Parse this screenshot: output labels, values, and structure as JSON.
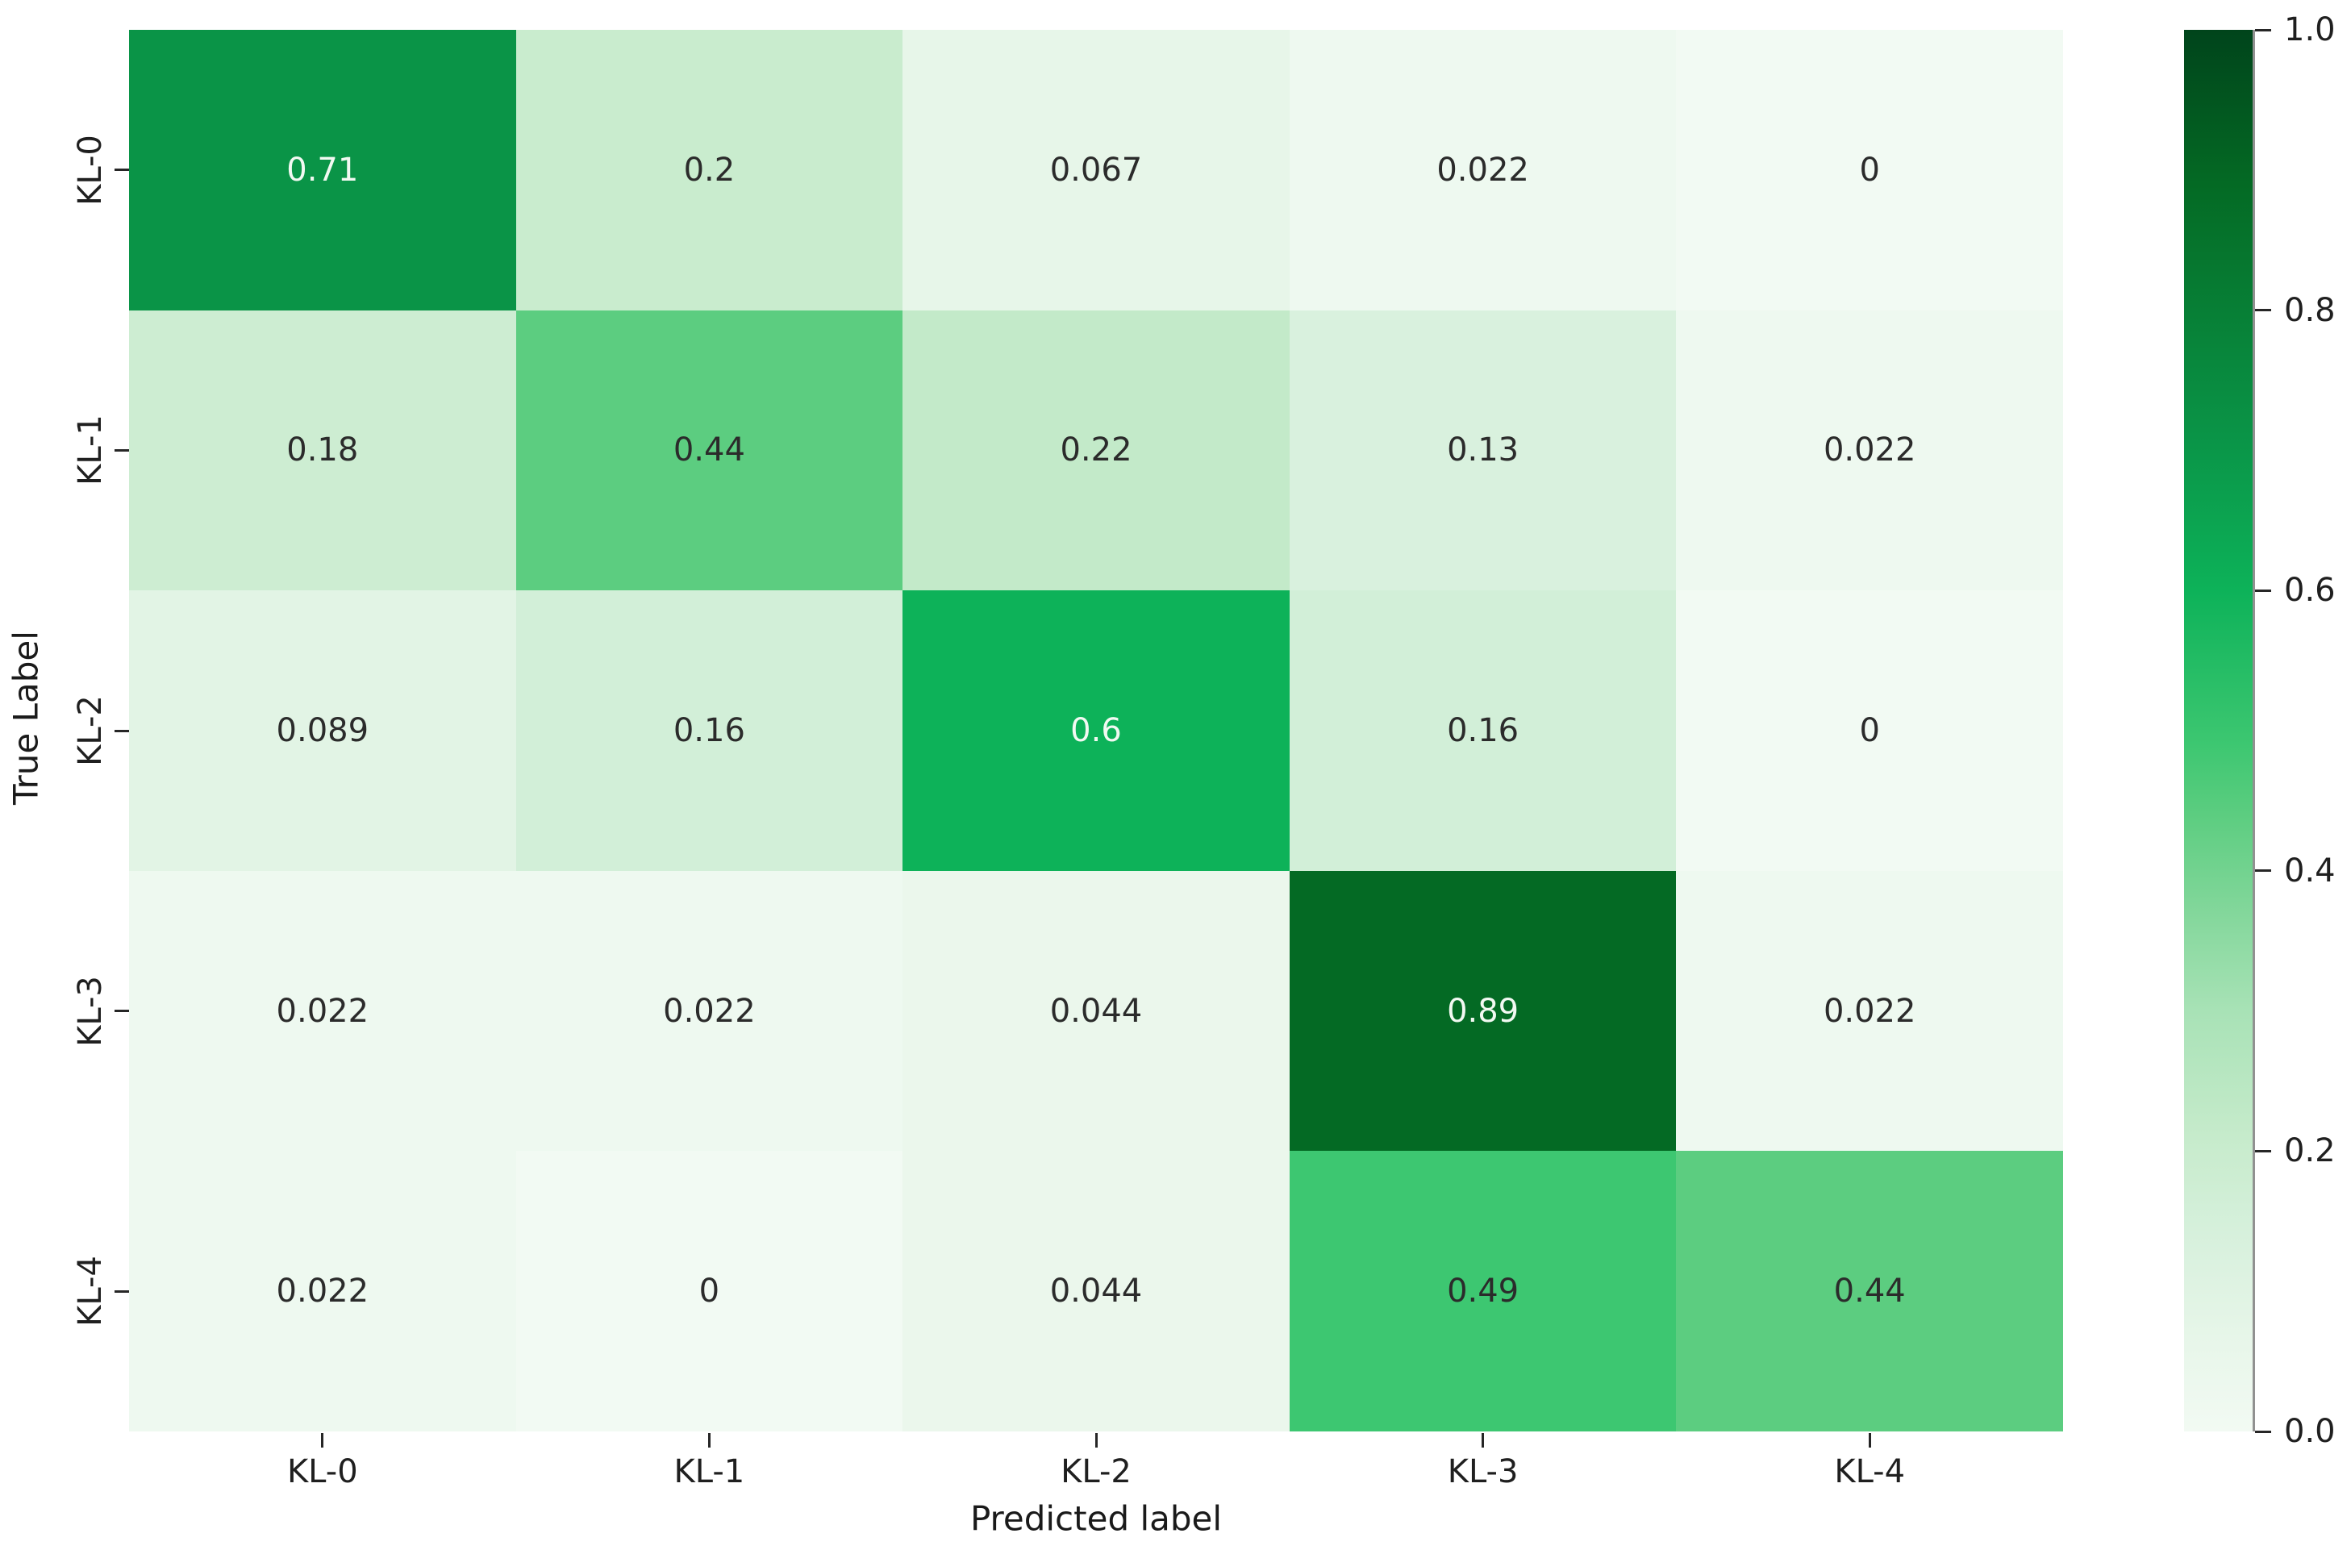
{
  "chart_data": {
    "type": "heatmap",
    "title": "",
    "xlabel": "Predicted label",
    "ylabel": "True Label",
    "x_tick_labels": [
      "KL-0",
      "KL-1",
      "KL-2",
      "KL-3",
      "KL-4"
    ],
    "y_tick_labels": [
      "KL-0",
      "KL-1",
      "KL-2",
      "KL-3",
      "KL-4"
    ],
    "values": [
      [
        0.71,
        0.2,
        0.067,
        0.022,
        0
      ],
      [
        0.18,
        0.44,
        0.22,
        0.13,
        0.022
      ],
      [
        0.089,
        0.16,
        0.6,
        0.16,
        0
      ],
      [
        0.022,
        0.022,
        0.044,
        0.89,
        0.022
      ],
      [
        0.022,
        0,
        0.044,
        0.49,
        0.44
      ]
    ],
    "cell_labels": [
      [
        "0.71",
        "0.2",
        "0.067",
        "0.022",
        "0"
      ],
      [
        "0.18",
        "0.44",
        "0.22",
        "0.13",
        "0.022"
      ],
      [
        "0.089",
        "0.16",
        "0.6",
        "0.16",
        "0"
      ],
      [
        "0.022",
        "0.022",
        "0.044",
        "0.89",
        "0.022"
      ],
      [
        "0.022",
        "0",
        "0.044",
        "0.49",
        "0.44"
      ]
    ],
    "value_range": [
      0,
      1
    ],
    "grid": false,
    "colorbar_position": "right",
    "colorbar_ticks": [
      {
        "label": "1.0",
        "value": 1.0
      },
      {
        "label": "0.8",
        "value": 0.8
      },
      {
        "label": "0.6",
        "value": 0.6
      },
      {
        "label": "0.4",
        "value": 0.4
      },
      {
        "label": "0.2",
        "value": 0.2
      },
      {
        "label": "0.0",
        "value": 0.0
      }
    ],
    "colormap": {
      "name": "Greens",
      "anchors": [
        {
          "v": 0.0,
          "c": "#f2faf3"
        },
        {
          "v": 0.067,
          "c": "#e7f6e9"
        },
        {
          "v": 0.089,
          "c": "#e2f4e5"
        },
        {
          "v": 0.13,
          "c": "#d9f1de"
        },
        {
          "v": 0.16,
          "c": "#d2efd8"
        },
        {
          "v": 0.18,
          "c": "#cdedd2"
        },
        {
          "v": 0.2,
          "c": "#c9ecce"
        },
        {
          "v": 0.22,
          "c": "#c3eac9"
        },
        {
          "v": 0.3,
          "c": "#a8e2b6"
        },
        {
          "v": 0.37,
          "c": "#83d79b"
        },
        {
          "v": 0.44,
          "c": "#5ccd80"
        },
        {
          "v": 0.49,
          "c": "#3dc771"
        },
        {
          "v": 0.6,
          "c": "#0db259"
        },
        {
          "v": 0.71,
          "c": "#0a9447"
        },
        {
          "v": 0.89,
          "c": "#046a24"
        },
        {
          "v": 1.0,
          "c": "#00441b"
        }
      ]
    },
    "annotation": {
      "white_threshold": 0.55,
      "light_text": "#f2f9f2",
      "dark_text": "#2b2b2b"
    }
  }
}
